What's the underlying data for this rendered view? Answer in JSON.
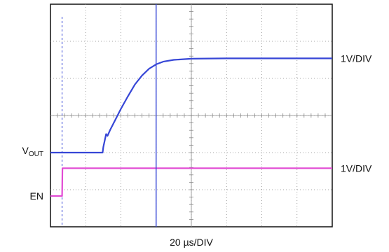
{
  "chart_data": {
    "type": "line",
    "title": "",
    "xlabel": "20 µs/DIV",
    "x_divisions": 8,
    "y_divisions": 6,
    "grid": true,
    "colors": {
      "vout": "#3646d6",
      "en": "#e24bd4",
      "cursor": "#3646d6",
      "grid": "#888888"
    },
    "series": [
      {
        "name": "VOUT",
        "name_main": "V",
        "name_sub": "OUT",
        "scale": "1V/DIV",
        "ground_div": 2.0,
        "points": [
          [
            0,
            0
          ],
          [
            1.48,
            0
          ],
          [
            1.5,
            0.15
          ],
          [
            1.58,
            0.5
          ],
          [
            1.62,
            0.45
          ],
          [
            1.7,
            0.62
          ],
          [
            1.85,
            0.9
          ],
          [
            2.0,
            1.18
          ],
          [
            2.2,
            1.52
          ],
          [
            2.4,
            1.84
          ],
          [
            2.6,
            2.08
          ],
          [
            2.8,
            2.26
          ],
          [
            3.0,
            2.38
          ],
          [
            3.2,
            2.45
          ],
          [
            3.5,
            2.5
          ],
          [
            4.0,
            2.53
          ],
          [
            5.0,
            2.54
          ],
          [
            6.0,
            2.54
          ],
          [
            8.0,
            2.54
          ]
        ]
      },
      {
        "name": "EN",
        "scale": "1V/DIV",
        "ground_div": 0.83,
        "points": [
          [
            0,
            0
          ],
          [
            0.33,
            0
          ],
          [
            0.34,
            0.75
          ],
          [
            8.0,
            0.75
          ]
        ]
      }
    ],
    "trigger_div": 0.33,
    "cursor_div": 3.0
  }
}
